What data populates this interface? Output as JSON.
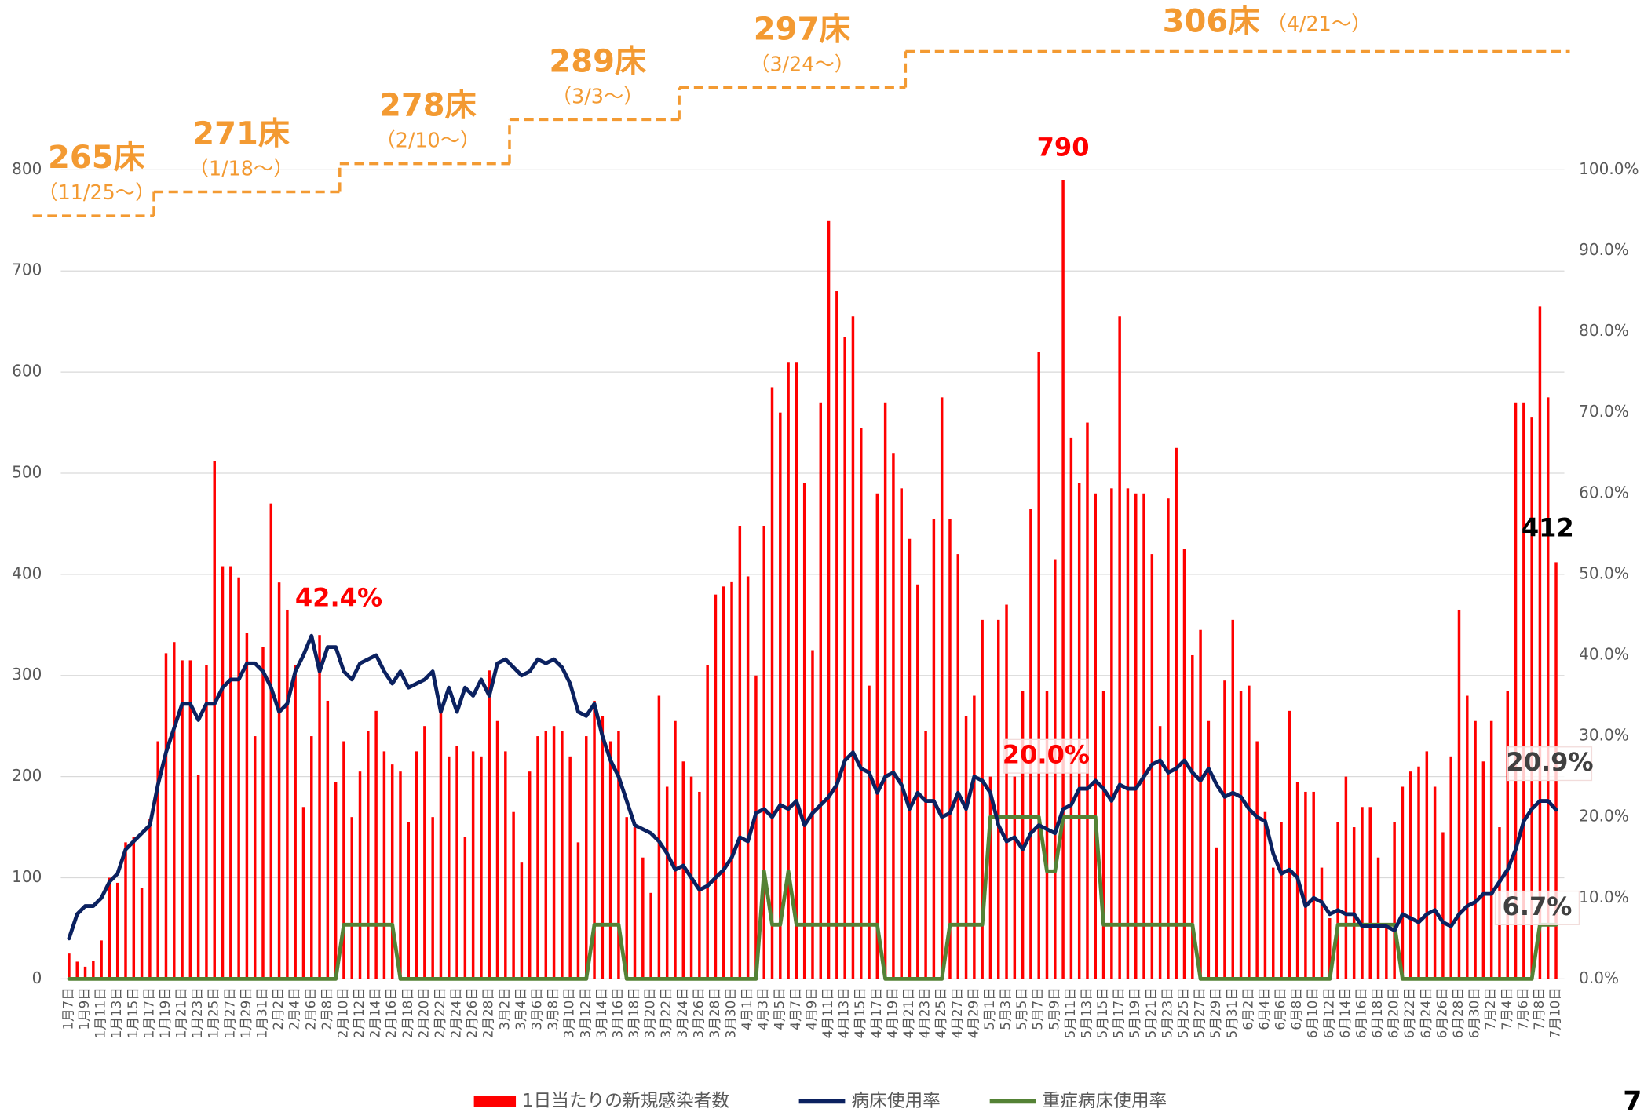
{
  "chart_data": {
    "type": "combo",
    "categories": [
      "1月7日",
      null,
      "1月9日",
      null,
      "1月11日",
      null,
      "1月13日",
      null,
      "1月15日",
      null,
      "1月17日",
      null,
      "1月19日",
      null,
      "1月21日",
      null,
      "1月23日",
      null,
      "1月25日",
      null,
      "1月27日",
      null,
      "1月29日",
      null,
      "1月31日",
      null,
      "2月2日",
      null,
      "2月4日",
      null,
      "2月6日",
      null,
      "2月8日",
      null,
      "2月10日",
      null,
      "2月12日",
      null,
      "2月14日",
      null,
      "2月16日",
      null,
      "2月18日",
      null,
      "2月20日",
      null,
      "2月22日",
      null,
      "2月24日",
      null,
      "2月26日",
      null,
      "2月28日",
      null,
      "3月2日",
      null,
      "3月4日",
      null,
      "3月6日",
      null,
      "3月8日",
      null,
      "3月10日",
      null,
      "3月12日",
      null,
      "3月14日",
      null,
      "3月16日",
      null,
      "3月18日",
      null,
      "3月20日",
      null,
      "3月22日",
      null,
      "3月24日",
      null,
      "3月26日",
      null,
      "3月28日",
      null,
      "3月30日",
      null,
      "4月1日",
      null,
      "4月3日",
      null,
      "4月5日",
      null,
      "4月7日",
      null,
      "4月9日",
      null,
      "4月11日",
      null,
      "4月13日",
      null,
      "4月15日",
      null,
      "4月17日",
      null,
      "4月19日",
      null,
      "4月21日",
      null,
      "4月23日",
      null,
      "4月25日",
      null,
      "4月27日",
      null,
      "4月29日",
      null,
      "5月1日",
      null,
      "5月3日",
      null,
      "5月5日",
      null,
      "5月7日",
      null,
      "5月9日",
      null,
      "5月11日",
      null,
      "5月13日",
      null,
      "5月15日",
      null,
      "5月17日",
      null,
      "5月19日",
      null,
      "5月21日",
      null,
      "5月23日",
      null,
      "5月25日",
      null,
      "5月27日",
      null,
      "5月29日",
      null,
      "5月31日",
      null,
      "6月2日",
      null,
      "6月4日",
      null,
      "6月6日",
      null,
      "6月8日",
      null,
      "6月10日",
      null,
      "6月12日",
      null,
      "6月14日",
      null,
      "6月16日",
      null,
      "6月18日",
      null,
      "6月20日",
      null,
      "6月22日",
      null,
      "6月24日",
      null,
      "6月26日",
      null,
      "6月28日",
      null,
      "6月30日",
      null,
      "7月2日",
      null,
      "7月4日",
      null,
      "7月6日",
      null,
      "7月8日",
      null,
      "7月10日"
    ],
    "series": [
      {
        "name": "1日当たりの新規感染者数",
        "type": "bar",
        "color": "#ff0000",
        "values": [
          25,
          17,
          12,
          18,
          38,
          100,
          95,
          135,
          140,
          90,
          158,
          235,
          322,
          333,
          315,
          315,
          202,
          310,
          512,
          408,
          408,
          397,
          342,
          240,
          328,
          470,
          392,
          365,
          310,
          170,
          240,
          340,
          275,
          195,
          235,
          160,
          205,
          245,
          265,
          225,
          212,
          205,
          155,
          225,
          250,
          160,
          265,
          220,
          230,
          140,
          225,
          220,
          305,
          255,
          225,
          165,
          115,
          205,
          240,
          245,
          250,
          245,
          220,
          135,
          240,
          275,
          260,
          235,
          245,
          160,
          150,
          120,
          85,
          280,
          190,
          255,
          215,
          200,
          185,
          310,
          380,
          388,
          393,
          448,
          398,
          300,
          448,
          585,
          560,
          610,
          610,
          490,
          325,
          570,
          750,
          680,
          635,
          655,
          545,
          290,
          480,
          570,
          520,
          485,
          435,
          390,
          245,
          455,
          575,
          455,
          420,
          260,
          280,
          355,
          200,
          355,
          370,
          200,
          285,
          465,
          620,
          285,
          415,
          790,
          535,
          490,
          550,
          480,
          285,
          485,
          655,
          485,
          480,
          480,
          420,
          250,
          475,
          525,
          425,
          320,
          345,
          255,
          130,
          295,
          355,
          285,
          290,
          235,
          165,
          110,
          155,
          265,
          195,
          185,
          185,
          110,
          60,
          155,
          200,
          150,
          170,
          170,
          120,
          55,
          155,
          190,
          205,
          210,
          225,
          190,
          145,
          220,
          365,
          280,
          255,
          215,
          255,
          150,
          285,
          570,
          570,
          555,
          665,
          575,
          412
        ]
      },
      {
        "name": "病床使用率",
        "type": "line",
        "axis": "y2",
        "color": "#0b2160",
        "values": [
          5,
          8,
          9,
          9,
          10,
          12,
          13,
          16,
          17,
          18,
          19,
          24,
          28,
          31,
          34,
          34,
          32,
          34,
          34,
          36,
          37,
          37,
          39,
          39,
          38,
          36,
          33,
          34,
          38,
          40,
          42.4,
          38,
          41,
          41,
          38,
          37,
          39,
          39.5,
          40,
          38,
          36.5,
          38,
          36,
          36.5,
          37,
          38,
          33,
          36,
          33,
          36,
          35,
          37,
          35,
          39,
          39.5,
          38.5,
          37.5,
          38,
          39.5,
          39,
          39.5,
          38.5,
          36.5,
          33,
          32.5,
          34,
          30,
          27,
          25,
          22,
          19,
          18.5,
          18,
          17,
          15.5,
          13.5,
          14,
          12.5,
          11,
          11.5,
          12.5,
          13.5,
          15,
          17.5,
          17,
          20.5,
          21,
          20,
          21.5,
          21,
          22,
          19,
          20.5,
          21.5,
          22.5,
          24,
          27,
          28,
          26,
          25.5,
          23,
          25,
          25.5,
          24,
          21,
          23,
          22,
          22,
          20,
          20.5,
          23,
          21,
          25,
          24.5,
          23,
          19,
          17,
          17.5,
          16,
          18,
          19,
          18.5,
          18,
          21,
          21.5,
          23.5,
          23.5,
          24.5,
          23.5,
          22,
          24,
          23.5,
          23.5,
          25,
          26.5,
          27,
          25.5,
          26,
          27,
          25.5,
          24.5,
          26,
          24,
          22.5,
          23,
          22.5,
          21,
          20,
          19.5,
          15.5,
          13,
          13.5,
          12.5,
          9,
          10,
          9.5,
          8,
          8.5,
          8,
          8,
          6.5,
          6.5,
          6.5,
          6.5,
          6,
          8,
          7.5,
          7,
          8,
          8.5,
          7,
          6.5,
          8,
          9,
          9.5,
          10.5,
          10.5,
          12,
          13.5,
          16,
          19.5,
          21,
          22,
          22,
          20.9
        ],
        "value_labels": {
          "30": "42.4%",
          "184": "20.9%"
        }
      },
      {
        "name": "重症病床使用率",
        "type": "line",
        "axis": "y2",
        "color": "#548235",
        "values": [
          0,
          0,
          0,
          0,
          0,
          0,
          0,
          0,
          0,
          0,
          0,
          0,
          0,
          0,
          0,
          0,
          0,
          0,
          0,
          0,
          0,
          0,
          0,
          0,
          0,
          0,
          0,
          0,
          0,
          0,
          0,
          0,
          0,
          0,
          6.7,
          6.7,
          6.7,
          6.7,
          6.7,
          6.7,
          6.7,
          0,
          0,
          0,
          0,
          0,
          0,
          0,
          0,
          0,
          0,
          0,
          0,
          0,
          0,
          0,
          0,
          0,
          0,
          0,
          0,
          0,
          0,
          0,
          0,
          6.7,
          6.7,
          6.7,
          6.7,
          0,
          0,
          0,
          0,
          0,
          0,
          0,
          0,
          0,
          0,
          0,
          0,
          0,
          0,
          0,
          0,
          0,
          13.3,
          6.7,
          6.7,
          13.3,
          6.7,
          6.7,
          6.7,
          6.7,
          6.7,
          6.7,
          6.7,
          6.7,
          6.7,
          6.7,
          6.7,
          0,
          0,
          0,
          0,
          0,
          0,
          0,
          0,
          6.7,
          6.7,
          6.7,
          6.7,
          6.7,
          20,
          20,
          20,
          20,
          20,
          20,
          20,
          13.3,
          13.3,
          20,
          20,
          20,
          20,
          20,
          6.7,
          6.7,
          6.7,
          6.7,
          6.7,
          6.7,
          6.7,
          6.7,
          6.7,
          6.7,
          6.7,
          6.7,
          0,
          0,
          0,
          0,
          0,
          0,
          0,
          0,
          0,
          0,
          0,
          0,
          0,
          0,
          0,
          0,
          0,
          6.7,
          6.7,
          6.7,
          6.7,
          6.7,
          6.7,
          6.7,
          6.7,
          0,
          0,
          0,
          0,
          0,
          0,
          0,
          0,
          0,
          0,
          0,
          0,
          0,
          0,
          0,
          0,
          0,
          6.7,
          6.7,
          6.7
        ],
        "value_labels": {
          "117": "20.0%",
          "184": "6.7%"
        }
      }
    ],
    "ylim": [
      0,
      800
    ],
    "yticks": [
      0,
      100,
      200,
      300,
      400,
      500,
      600,
      700,
      800
    ],
    "y2lim": [
      0,
      100
    ],
    "y2ticks": [
      {
        "value": 0,
        "label": "0.0%"
      },
      {
        "value": 10,
        "label": "10.0%"
      },
      {
        "value": 20,
        "label": "20.0%"
      },
      {
        "value": 30,
        "label": "30.0%"
      },
      {
        "value": 40,
        "label": "40.0%"
      },
      {
        "value": 50,
        "label": "50.0%"
      },
      {
        "value": 60,
        "label": "60.0%"
      },
      {
        "value": 70,
        "label": "70.0%"
      },
      {
        "value": 80,
        "label": "80.0%"
      },
      {
        "value": 90,
        "label": "90.0%"
      },
      {
        "value": 100,
        "label": "100.0%"
      }
    ],
    "grid": true,
    "legend": "bottom",
    "capacity": {
      "color": "#f39a32",
      "steps": [
        {
          "value": 265,
          "label": "265床",
          "from": "（11/25～）"
        },
        {
          "value": 271,
          "label": "271床",
          "from": "（1/18～）"
        },
        {
          "value": 278,
          "label": "278床",
          "from": "（2/10～）"
        },
        {
          "value": 289,
          "label": "289床",
          "from": "（3/3～）"
        },
        {
          "value": 297,
          "label": "297床",
          "from": "（3/24～）"
        },
        {
          "value": 306,
          "label": "306床",
          "from": "（4/21～）"
        }
      ]
    }
  },
  "page_number": "7"
}
